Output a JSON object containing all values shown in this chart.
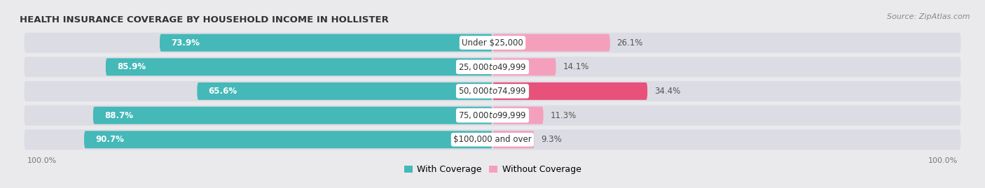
{
  "title": "HEALTH INSURANCE COVERAGE BY HOUSEHOLD INCOME IN HOLLISTER",
  "source": "Source: ZipAtlas.com",
  "categories": [
    "Under $25,000",
    "$25,000 to $49,999",
    "$50,000 to $74,999",
    "$75,000 to $99,999",
    "$100,000 and over"
  ],
  "with_coverage": [
    73.9,
    85.9,
    65.6,
    88.7,
    90.7
  ],
  "without_coverage": [
    26.1,
    14.1,
    34.4,
    11.3,
    9.3
  ],
  "color_with": "#45b8b8",
  "color_without_highlight": "#e8517a",
  "color_without_normal": "#f4a0bc",
  "highlight_row": 2,
  "bg_color": "#eaeaed",
  "bar_bg": "#dcdce4",
  "label_fontsize": 8.5,
  "title_fontsize": 9.5,
  "legend_fontsize": 9,
  "source_fontsize": 8
}
